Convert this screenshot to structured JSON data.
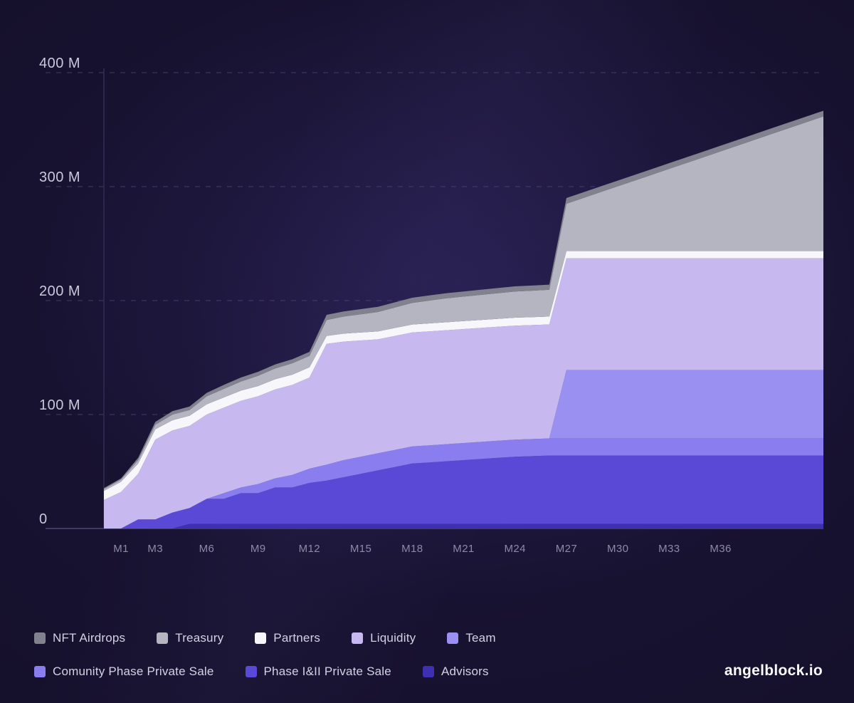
{
  "footer": {
    "brand": "angelblock.io"
  },
  "chart_data": {
    "type": "area",
    "stacked": true,
    "title": "",
    "xlabel": "",
    "ylabel": "",
    "ylim": [
      0,
      400
    ],
    "grid": "dashed-horizontal",
    "legend_position": "bottom-left",
    "x_unit": "month",
    "x_start_month": 0,
    "x_end_month": 42,
    "x_ticks": [
      {
        "month": 1,
        "label": "M1"
      },
      {
        "month": 3,
        "label": "M3"
      },
      {
        "month": 6,
        "label": "M6"
      },
      {
        "month": 9,
        "label": "M9"
      },
      {
        "month": 12,
        "label": "M12"
      },
      {
        "month": 15,
        "label": "M15"
      },
      {
        "month": 18,
        "label": "M18"
      },
      {
        "month": 21,
        "label": "M21"
      },
      {
        "month": 24,
        "label": "M24"
      },
      {
        "month": 27,
        "label": "M27"
      },
      {
        "month": 30,
        "label": "M30"
      },
      {
        "month": 33,
        "label": "M33"
      },
      {
        "month": 36,
        "label": "M36"
      }
    ],
    "y_ticks": [
      {
        "value": 400,
        "label": "400 M"
      },
      {
        "value": 300,
        "label": "300 M"
      },
      {
        "value": 200,
        "label": "200 M"
      },
      {
        "value": 100,
        "label": "100 M"
      },
      {
        "value": 0,
        "label": "0"
      }
    ],
    "value_unit": "M tokens",
    "series_note": "bottom-to-top stacking order; values in millions of tokens per month M0..M42",
    "series": [
      {
        "id": "advisors",
        "name": "Advisors",
        "color": "#3d31b2",
        "values": [
          0,
          0,
          0,
          0,
          0,
          4,
          4,
          4,
          4,
          4,
          4,
          4,
          4,
          4,
          4,
          4,
          4,
          4,
          4,
          4,
          4,
          4,
          4,
          4,
          4,
          4,
          4,
          4,
          4,
          4,
          4,
          4,
          4,
          4,
          4,
          4,
          4,
          4,
          4,
          4,
          4,
          4,
          4
        ]
      },
      {
        "id": "phase-1-2-private-sale",
        "name": "Phase I&II Private Sale",
        "color": "#5a49d6",
        "values": [
          0,
          0,
          8,
          8,
          14,
          14,
          22,
          22,
          27,
          27,
          32,
          32,
          36,
          38,
          41,
          44,
          47,
          50,
          53,
          54,
          55,
          56,
          57,
          58,
          59,
          59.5,
          60,
          60,
          60,
          60,
          60,
          60,
          60,
          60,
          60,
          60,
          60,
          60,
          60,
          60,
          60,
          60,
          60
        ]
      },
      {
        "id": "community-phase-private-sale",
        "name": "Comunity Phase Private Sale",
        "color": "#8a7df0",
        "values": [
          0,
          0,
          0,
          0,
          0,
          0,
          0,
          5,
          5,
          8,
          8,
          11,
          12.5,
          14,
          15,
          15,
          15,
          15,
          15,
          15,
          15,
          15,
          15,
          15,
          15,
          15,
          15,
          15,
          15,
          15,
          15,
          15,
          15,
          15,
          15,
          15,
          15,
          15,
          15,
          15,
          15,
          15,
          15
        ]
      },
      {
        "id": "team",
        "name": "Team",
        "color": "#9a90f2",
        "values": [
          0,
          0,
          0,
          0,
          0,
          0,
          0,
          0,
          0,
          0,
          0,
          0,
          0,
          0,
          0,
          0,
          0,
          0,
          0,
          0,
          0,
          0,
          0,
          0,
          0,
          0,
          0,
          60,
          60,
          60,
          60,
          60,
          60,
          60,
          60,
          60,
          60,
          60,
          60,
          60,
          60,
          60,
          60
        ]
      },
      {
        "id": "liquidity",
        "name": "Liquidity",
        "color": "#c7b9f0",
        "values": [
          25,
          32,
          40,
          70,
          72,
          72,
          74,
          75,
          76,
          77,
          78,
          79,
          80,
          106,
          104,
          102,
          100,
          100,
          100,
          100,
          100,
          100,
          100,
          100,
          100,
          100,
          100,
          98,
          98,
          98,
          98,
          98,
          98,
          98,
          98,
          98,
          98,
          98,
          98,
          98,
          98,
          98,
          98
        ]
      },
      {
        "id": "partners",
        "name": "Partners",
        "color": "#f6f6fb",
        "values": [
          8,
          9,
          9,
          9,
          9,
          9,
          9,
          9,
          9,
          9,
          9,
          9,
          9,
          7,
          7,
          7,
          7,
          7,
          7,
          7,
          7,
          7,
          7,
          7,
          7,
          7,
          7,
          6.5,
          6.5,
          6.5,
          6.5,
          6.5,
          6.5,
          6.5,
          6.5,
          6.5,
          6.5,
          6.5,
          6.5,
          6.5,
          6.5,
          6.5,
          6.5
        ]
      },
      {
        "id": "treasury",
        "name": "Treasury",
        "color": "#b4b5c1",
        "values": [
          1.5,
          2,
          3,
          4,
          5,
          5,
          7,
          7.5,
          8,
          9,
          9.5,
          10,
          10,
          14,
          15,
          16,
          17,
          18,
          19,
          20,
          21,
          21.5,
          22,
          22.5,
          23,
          23.2,
          23.5,
          41.5,
          46.6,
          51.7,
          56.8,
          61.9,
          67,
          72.1,
          77.2,
          82.3,
          87.4,
          92.5,
          97.7,
          102.8,
          107.9,
          113,
          118.1
        ]
      },
      {
        "id": "nft-airdrops",
        "name": "NFT Airdrops",
        "color": "#82828f",
        "values": [
          1,
          1,
          2,
          2.5,
          3,
          3,
          3,
          3.5,
          3.5,
          3.5,
          3.5,
          3.5,
          3.5,
          4.5,
          4.5,
          4.5,
          4.5,
          4.5,
          4.5,
          4.5,
          4.5,
          4.5,
          4.5,
          4.5,
          4.5,
          4.5,
          4.5,
          5,
          5,
          5,
          5,
          5,
          5,
          5,
          5,
          5,
          5,
          5,
          5,
          5,
          5,
          5,
          5
        ]
      },
      {
        "id": "_",
        "name": "",
        "color": "",
        "values": []
      }
    ],
    "legend_rows": [
      [
        "nft-airdrops",
        "treasury",
        "partners",
        "liquidity",
        "team"
      ],
      [
        "community-phase-private-sale",
        "phase-1-2-private-sale",
        "advisors"
      ]
    ],
    "axis_colors": {
      "gridline": "#4f4a7c",
      "axis_line": "#322d55",
      "baseline": "#3e3968",
      "y_label": "#cac8da",
      "x_label": "#8d89a6"
    }
  }
}
